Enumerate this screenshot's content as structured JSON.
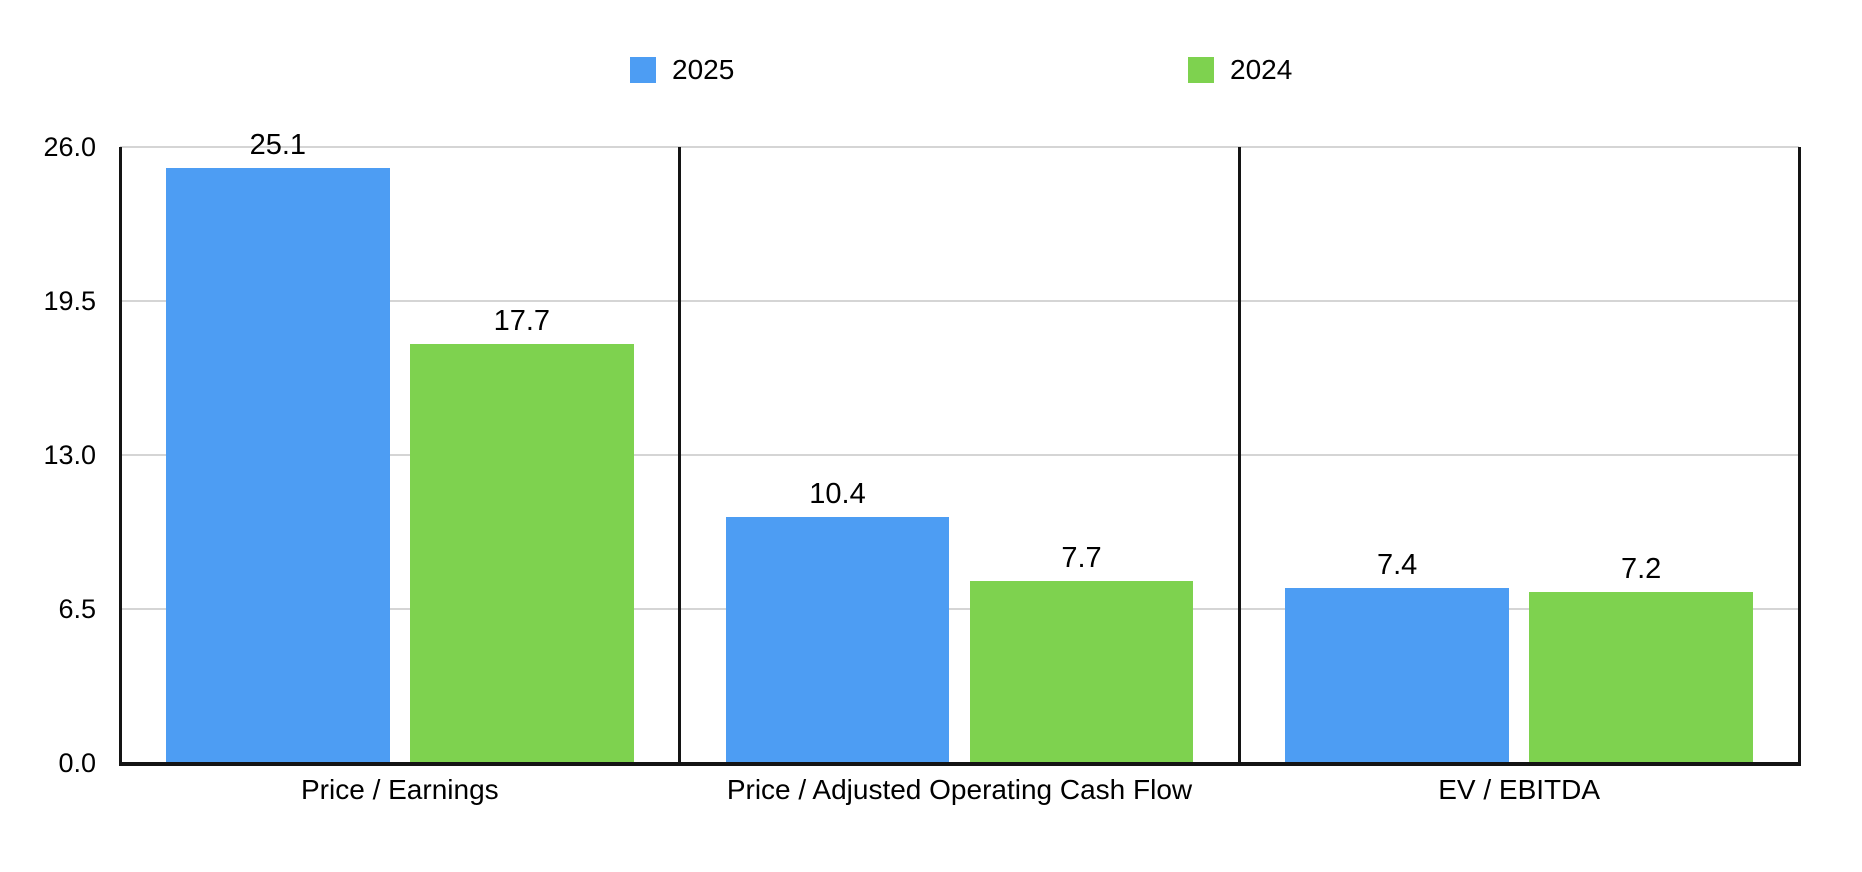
{
  "chart_data": {
    "type": "bar",
    "title": "",
    "categories": [
      "Price / Earnings",
      "Price / Adjusted Operating Cash Flow",
      "EV / EBITDA"
    ],
    "series": [
      {
        "name": "2025",
        "color": "#4D9DF3",
        "values": [
          25.1,
          10.4,
          7.4
        ],
        "labels": [
          "25.1",
          "10.4",
          "7.4"
        ]
      },
      {
        "name": "2024",
        "color": "#7ED24F",
        "values": [
          17.7,
          7.7,
          7.2
        ],
        "labels": [
          "17.7",
          "7.7",
          "7.2"
        ]
      }
    ],
    "ylim": [
      0,
      26
    ],
    "yticks": [
      0,
      6.5,
      13,
      19.5,
      26
    ],
    "ytick_labels": [
      "0.0",
      "6.5",
      "13.0",
      "19.5",
      "26.0"
    ],
    "grid": "horizontal-only",
    "legend_position": "top",
    "group_dividers": true,
    "colors": {
      "axis": "#141414",
      "gridline": "#D5D5D5",
      "text": "#000000",
      "background": "#FFFFFF"
    }
  }
}
